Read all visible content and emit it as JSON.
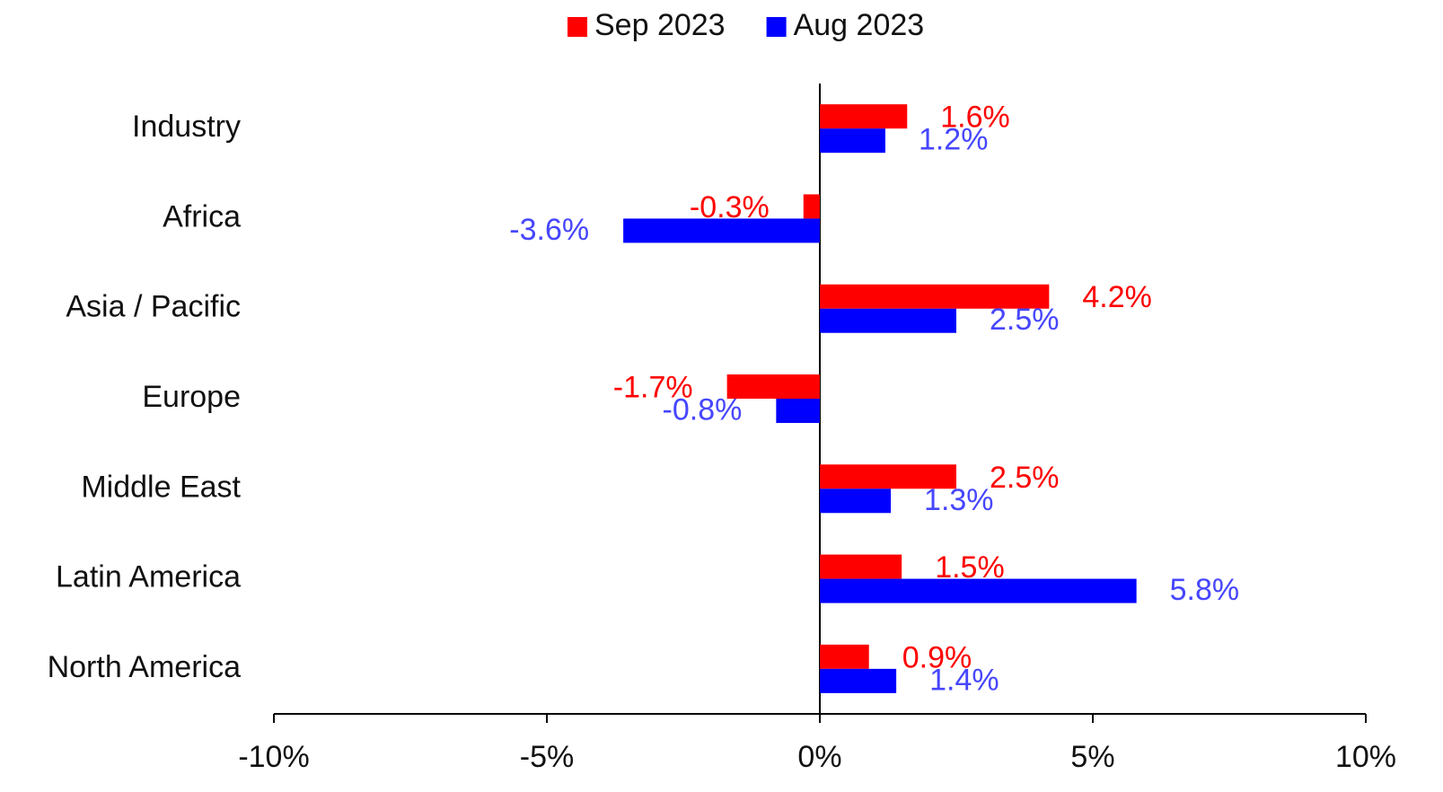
{
  "chart_data": {
    "type": "barh",
    "categories": [
      "Industry",
      "Africa",
      "Asia / Pacific",
      "Europe",
      "Middle East",
      "Latin America",
      "North America"
    ],
    "series": [
      {
        "name": "Sep 2023",
        "color": "#ff0000",
        "values": [
          1.6,
          -0.3,
          4.2,
          -1.7,
          2.5,
          1.5,
          0.9
        ],
        "value_labels": [
          "1.6%",
          "-0.3%",
          "4.2%",
          "-1.7%",
          "2.5%",
          "1.5%",
          "0.9%"
        ]
      },
      {
        "name": "Aug 2023",
        "color": "#0000ff",
        "values": [
          1.2,
          -3.6,
          2.5,
          -0.8,
          1.3,
          5.8,
          1.4
        ],
        "value_labels": [
          "1.2%",
          "-3.6%",
          "2.5%",
          "-0.8%",
          "1.3%",
          "5.8%",
          "1.4%"
        ]
      }
    ],
    "xlim": [
      -10,
      10
    ],
    "xticks": [
      {
        "value": -10,
        "label": "-10%"
      },
      {
        "value": -5,
        "label": "-5%"
      },
      {
        "value": 0,
        "label": "0%"
      },
      {
        "value": 5,
        "label": "5%"
      },
      {
        "value": 10,
        "label": "10%"
      }
    ],
    "legend": "top",
    "grid": false
  }
}
